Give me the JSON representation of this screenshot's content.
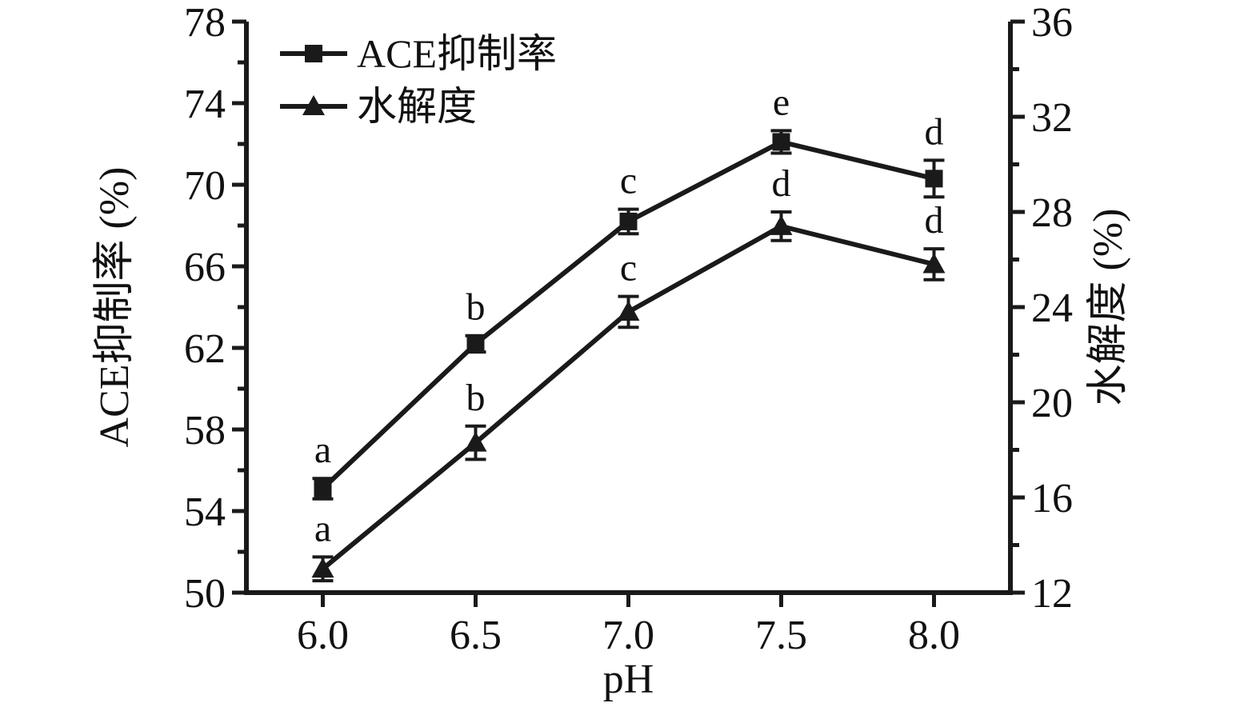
{
  "chart_data": {
    "type": "line",
    "title": "",
    "xlabel": "pH",
    "x": [
      6.0,
      6.5,
      7.0,
      7.5,
      8.0
    ],
    "x_tick_labels": [
      "6.0",
      "6.5",
      "7.0",
      "7.5",
      "8.0"
    ],
    "xlim": [
      5.75,
      8.25
    ],
    "left_axis": {
      "label": "ACE抑制率 (%)",
      "min": 50,
      "max": 78,
      "major_tick_labels": [
        "50",
        "54",
        "58",
        "62",
        "66",
        "70",
        "74",
        "78"
      ],
      "minor_step": 2
    },
    "right_axis": {
      "label": "水解度 (%)",
      "min": 12,
      "max": 36,
      "major_tick_labels": [
        "12",
        "16",
        "20",
        "24",
        "28",
        "32",
        "36"
      ],
      "minor_step": 2
    },
    "series": [
      {
        "name": "ACE抑制率",
        "axis": "left",
        "marker": "square",
        "values": [
          55.1,
          62.2,
          68.2,
          72.1,
          70.3
        ],
        "errors": [
          0.5,
          0.4,
          0.6,
          0.55,
          0.9
        ],
        "point_labels": [
          "a",
          "b",
          "c",
          "e",
          "d"
        ]
      },
      {
        "name": "水解度",
        "axis": "right",
        "marker": "triangle",
        "values": [
          13.0,
          18.3,
          23.8,
          27.4,
          25.8
        ],
        "errors": [
          0.5,
          0.7,
          0.65,
          0.6,
          0.65
        ],
        "point_labels": [
          "a",
          "b",
          "c",
          "d",
          "d"
        ]
      }
    ],
    "legend": {
      "position": "top-left",
      "entries": [
        "ACE抑制率",
        "水解度"
      ]
    },
    "colors": {
      "line": "#1a1a1a",
      "background": "#ffffff"
    }
  }
}
